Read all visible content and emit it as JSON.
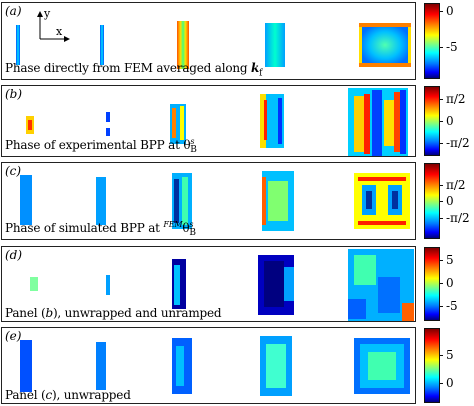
{
  "axes_labels": {
    "y": "y",
    "x": "x"
  },
  "panels": [
    {
      "tag": "(a)",
      "caption_pre": "Phase directly from FEM averaged along ",
      "caption_k": "k",
      "caption_sub": "f",
      "ticks": [
        "0",
        "-5"
      ]
    },
    {
      "tag": "(b)",
      "caption_pre": "Phase of experimental BPP at θ",
      "caption_sub": "B",
      "caption_sup": "s",
      "ticks": [
        "π/2",
        "0",
        "-π/2"
      ]
    },
    {
      "tag": "(c)",
      "caption_pre": "Phase of simulated BPP  at ",
      "caption_fem": "FEM",
      "caption_theta": "θ",
      "caption_sub": "B",
      "caption_sup": "s",
      "ticks": [
        "π/2",
        "0",
        "-π/2"
      ]
    },
    {
      "tag": "(d)",
      "caption_pre": "Panel (",
      "caption_ref": "b",
      "caption_post": "), unwrapped and unramped",
      "ticks": [
        "5",
        "0",
        "-5"
      ]
    },
    {
      "tag": "(e)",
      "caption_pre": "Panel (",
      "caption_ref": "c",
      "caption_post": "), unwrapped",
      "ticks": [
        "5",
        "0"
      ]
    }
  ]
}
